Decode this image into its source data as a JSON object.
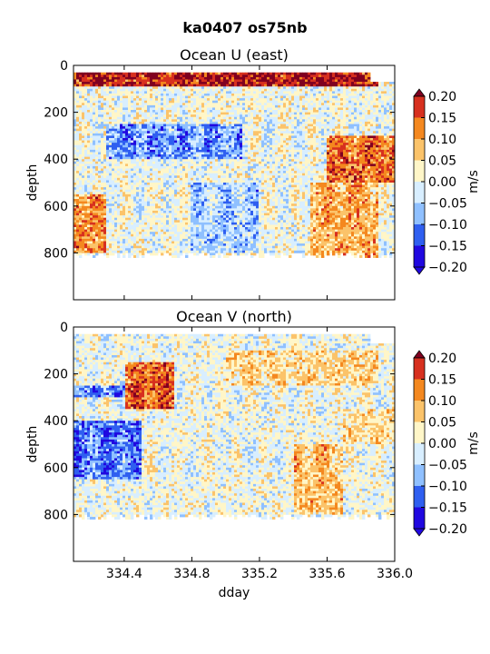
{
  "figure": {
    "title": "ka0407 os75nb"
  },
  "colorbar": {
    "label": "m/s",
    "ticks": [
      "0.20",
      "0.15",
      "0.10",
      "0.05",
      "0.00",
      "−0.05",
      "−0.10",
      "−0.15",
      "−0.20"
    ],
    "colors": [
      "#2008e0",
      "#2f5ff0",
      "#8fc0ff",
      "#d8eeff",
      "#fff6c8",
      "#fbc36a",
      "#f4881f",
      "#d7301f",
      "#800020"
    ],
    "extend": "both"
  },
  "chart_data": [
    {
      "type": "heatmap",
      "title": "Ocean U (east)",
      "ylabel": "depth",
      "xlabel": "",
      "xlim": [
        334.1,
        336.0
      ],
      "ylim": [
        1000,
        0
      ],
      "yticks": [
        "0",
        "200",
        "400",
        "600",
        "800"
      ],
      "xticks": [
        334.4,
        334.8,
        335.2,
        335.6,
        336.0
      ],
      "xtick_labels": [],
      "grid": false,
      "value_range": [
        -0.2,
        0.2
      ],
      "depth_top": 30,
      "bottom_depth_range": [
        800,
        830
      ],
      "features": [
        {
          "x": [
            334.1,
            335.9
          ],
          "depth": [
            30,
            90
          ],
          "value": 0.22
        },
        {
          "x": [
            334.1,
            334.3
          ],
          "depth": [
            550,
            800
          ],
          "value": 0.12
        },
        {
          "x": [
            334.3,
            335.1
          ],
          "depth": [
            250,
            400
          ],
          "value": -0.1
        },
        {
          "x": [
            335.6,
            336.0
          ],
          "depth": [
            300,
            500
          ],
          "value": 0.15
        },
        {
          "x": [
            335.5,
            335.9
          ],
          "depth": [
            500,
            820
          ],
          "value": 0.1
        },
        {
          "x": [
            334.8,
            335.2
          ],
          "depth": [
            500,
            800
          ],
          "value": -0.06
        }
      ]
    },
    {
      "type": "heatmap",
      "title": "Ocean V (north)",
      "ylabel": "depth",
      "xlabel": "dday",
      "xlim": [
        334.1,
        336.0
      ],
      "ylim": [
        1000,
        0
      ],
      "yticks": [
        "0",
        "200",
        "400",
        "600",
        "800"
      ],
      "xticks": [
        334.4,
        334.8,
        335.2,
        335.6,
        336.0
      ],
      "xtick_labels": [
        "334.4",
        "334.8",
        "335.2",
        "335.6",
        "336.0"
      ],
      "grid": false,
      "value_range": [
        -0.2,
        0.2
      ],
      "depth_top": 30,
      "bottom_depth_range": [
        800,
        830
      ],
      "features": [
        {
          "x": [
            334.4,
            334.7
          ],
          "depth": [
            150,
            350
          ],
          "value": 0.16
        },
        {
          "x": [
            334.1,
            334.5
          ],
          "depth": [
            400,
            650
          ],
          "value": -0.12
        },
        {
          "x": [
            335.0,
            335.9
          ],
          "depth": [
            100,
            250
          ],
          "value": 0.06
        },
        {
          "x": [
            335.4,
            335.7
          ],
          "depth": [
            500,
            800
          ],
          "value": 0.08
        },
        {
          "x": [
            334.1,
            334.4
          ],
          "depth": [
            250,
            300
          ],
          "value": -0.12
        },
        {
          "x": [
            335.7,
            336.0
          ],
          "depth": [
            350,
            500
          ],
          "value": 0.05
        }
      ]
    }
  ]
}
